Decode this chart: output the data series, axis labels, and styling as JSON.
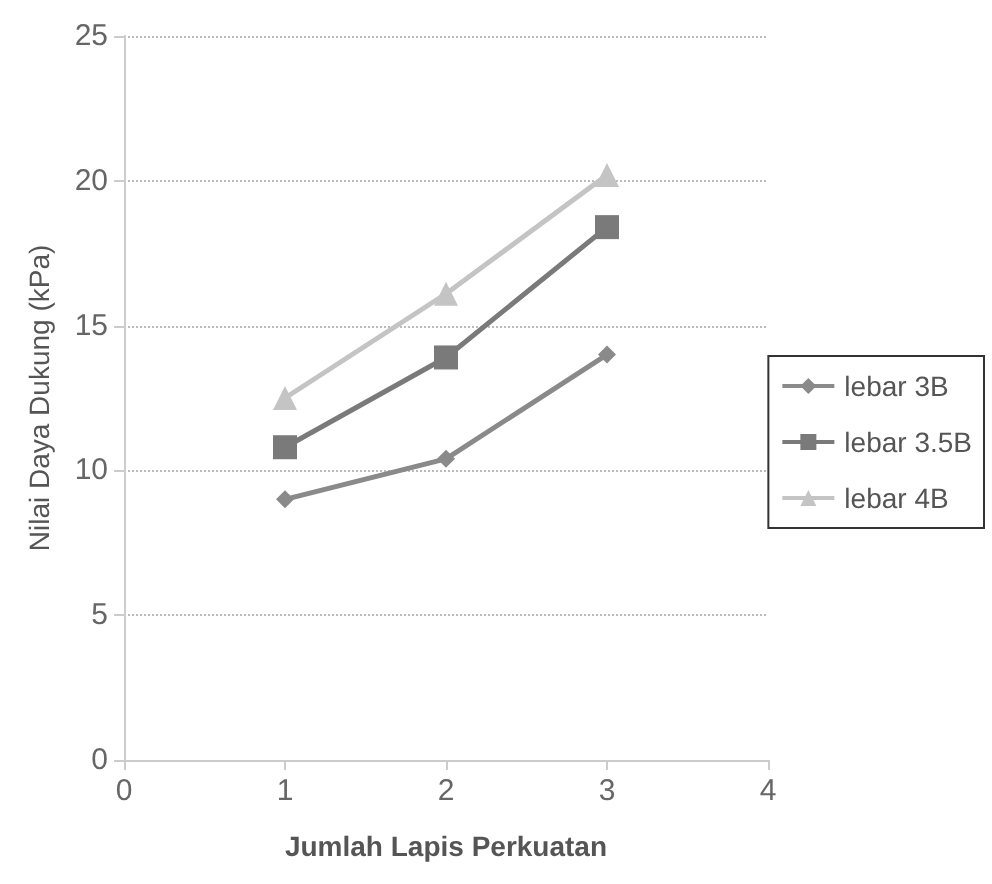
{
  "chart_data": {
    "type": "line",
    "xlabel": "Jumlah Lapis Perkuatan",
    "ylabel": "Nilai Daya Dukung (kPa)",
    "x": [
      1,
      2,
      3
    ],
    "series": [
      {
        "name": "lebar 3B",
        "color": "#8a8a8a",
        "marker": "diamond",
        "values": [
          9.0,
          10.4,
          14.0
        ]
      },
      {
        "name": "lebar 3.5B",
        "color": "#7a7a7a",
        "marker": "square",
        "values": [
          10.8,
          13.9,
          18.4
        ]
      },
      {
        "name": "lebar 4B",
        "color": "#c4c4c4",
        "marker": "triangle",
        "values": [
          12.5,
          16.1,
          20.2
        ]
      }
    ],
    "xlim": [
      0,
      4
    ],
    "xticks": [
      0,
      1,
      2,
      3,
      4
    ],
    "ylim": [
      0,
      25
    ],
    "yticks": [
      0,
      5,
      10,
      15,
      20,
      25
    ],
    "grid": "y",
    "legend": "right"
  }
}
